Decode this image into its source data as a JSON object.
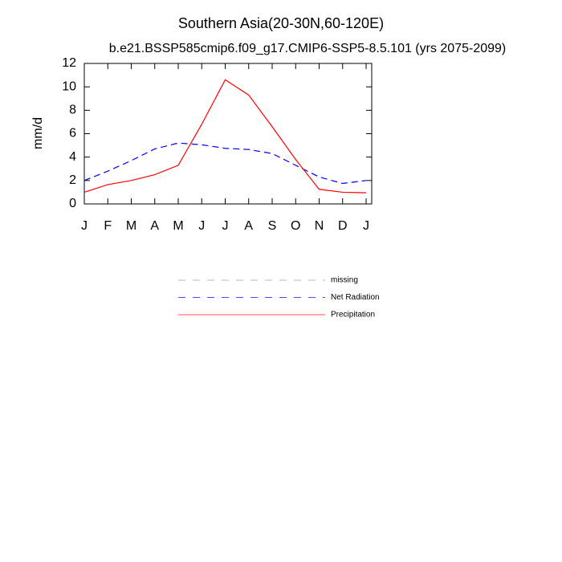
{
  "chart_data": {
    "type": "line",
    "title": "Southern Asia(20-30N,60-120E)",
    "subtitle": "b.e21.BSSP585cmip6.f09_g17.CMIP6-SSP5-8.5.101 (yrs 2075-2099)",
    "y_label": "mm/d",
    "categories": [
      "J",
      "F",
      "M",
      "A",
      "M",
      "J",
      "J",
      "A",
      "S",
      "O",
      "N",
      "D",
      "J"
    ],
    "series": [
      {
        "name": "missing",
        "color": "#999999",
        "dash": true,
        "values": [
          null,
          null,
          null,
          null,
          null,
          null,
          null,
          null,
          null,
          null,
          null,
          null,
          null
        ]
      },
      {
        "name": "Net Radiation",
        "color": "#0000ff",
        "dash": true,
        "values": [
          2.0,
          2.8,
          3.7,
          4.7,
          5.2,
          5.05,
          4.75,
          4.65,
          4.3,
          3.3,
          2.3,
          1.75,
          2.0
        ]
      },
      {
        "name": "Precipitation",
        "color": "#ff0000",
        "dash": false,
        "values": [
          1.0,
          1.65,
          2.0,
          2.5,
          3.3,
          6.8,
          10.6,
          9.3,
          6.6,
          3.8,
          1.25,
          1.0,
          0.95
        ]
      }
    ],
    "ylim": [
      0,
      12
    ],
    "yticks": [
      0,
      2,
      4,
      6,
      8,
      10,
      12
    ],
    "grid": false
  }
}
